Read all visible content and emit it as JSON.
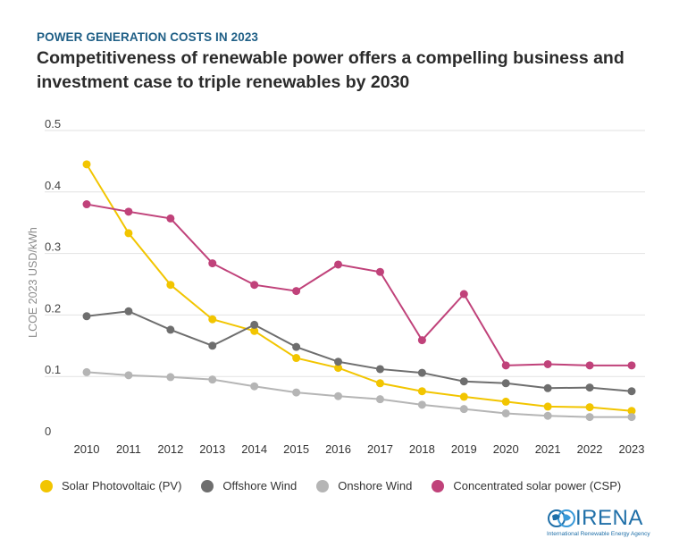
{
  "header": {
    "kicker": "POWER GENERATION COSTS IN 2023",
    "title": "Competitiveness of renewable power offers a compelling business and investment case to triple renewables by 2030"
  },
  "logo": {
    "name": "IRENA",
    "subtitle": "International Renewable Energy Agency"
  },
  "chart_data": {
    "type": "line",
    "ylabel": "LCOE 2023 USD/kWh",
    "xlabel": "",
    "ylim": [
      0,
      0.5
    ],
    "yticks": [
      "0",
      "0.1",
      "0.2",
      "0.3",
      "0.4",
      "0.5"
    ],
    "grid": true,
    "legend_position": "bottom",
    "x": [
      "2010",
      "2011",
      "2012",
      "2013",
      "2014",
      "2015",
      "2016",
      "2017",
      "2018",
      "2019",
      "2020",
      "2021",
      "2022",
      "2023"
    ],
    "series": [
      {
        "name": "Solar Photovoltaic (PV)",
        "color": "#f2c500",
        "values": [
          0.445,
          0.333,
          0.249,
          0.193,
          0.174,
          0.13,
          0.114,
          0.089,
          0.076,
          0.067,
          0.059,
          0.051,
          0.05,
          0.044
        ]
      },
      {
        "name": "Offshore Wind",
        "color": "#6e6e6e",
        "values": [
          0.198,
          0.206,
          0.176,
          0.15,
          0.184,
          0.148,
          0.124,
          0.112,
          0.106,
          0.092,
          0.089,
          0.081,
          0.082,
          0.076
        ]
      },
      {
        "name": "Onshore Wind",
        "color": "#b5b5b5",
        "values": [
          0.107,
          0.102,
          0.099,
          0.095,
          0.084,
          0.074,
          0.068,
          0.063,
          0.054,
          0.047,
          0.04,
          0.036,
          0.034,
          0.034
        ]
      },
      {
        "name": "Concentrated solar power (CSP)",
        "color": "#c0427a",
        "values": [
          0.38,
          0.368,
          0.357,
          0.284,
          0.249,
          0.239,
          0.282,
          0.27,
          0.159,
          0.234,
          0.118,
          0.12,
          0.118,
          0.118
        ]
      }
    ]
  }
}
